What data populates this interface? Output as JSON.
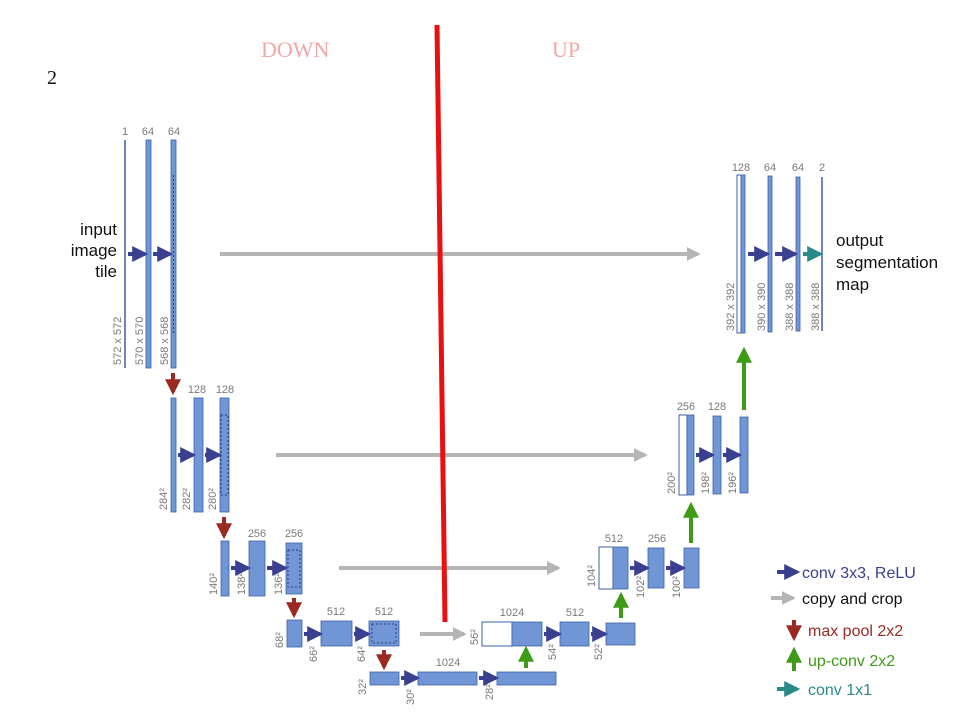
{
  "figure_number": "2",
  "section_labels": {
    "down": "DOWN",
    "up": "UP"
  },
  "labels": {
    "input": [
      "input",
      "image",
      "tile"
    ],
    "output": [
      "output",
      "segmentation",
      "map"
    ]
  },
  "channels": {
    "l1": [
      "1",
      "64",
      "64"
    ],
    "l2": [
      "128",
      "128"
    ],
    "l3": [
      "256",
      "256"
    ],
    "l4": [
      "512",
      "512"
    ],
    "l5": [
      "1024"
    ],
    "r4": [
      "1024",
      "512"
    ],
    "r3": [
      "512",
      "256"
    ],
    "r2": [
      "256",
      "128"
    ],
    "r1": [
      "128",
      "64",
      "64",
      "2"
    ]
  },
  "dims": {
    "l1": [
      "572 x 572",
      "570 x 570",
      "568 x 568"
    ],
    "l2": [
      "284²",
      "282²",
      "280²"
    ],
    "l3": [
      "140²",
      "138²",
      "136²"
    ],
    "l4": [
      "68²",
      "66²",
      "64²"
    ],
    "l5": [
      "32²",
      "30²",
      "28²"
    ],
    "r4": [
      "56²",
      "54²",
      "52²"
    ],
    "r3": [
      "104²",
      "102²",
      "100²"
    ],
    "r2": [
      "200²",
      "198²",
      "196²"
    ],
    "r1": [
      "392 x 392",
      "390 x 390",
      "388 x 388",
      "388 x 388"
    ]
  },
  "legend": [
    {
      "label": "conv 3x3, ReLU",
      "color": "#3a3f8f",
      "icon": "arrow-right-icon"
    },
    {
      "label": "copy and crop",
      "color": "#b5b5b5",
      "icon": "arrow-right-icon"
    },
    {
      "label": "max pool 2x2",
      "color": "#9b2a22",
      "icon": "arrow-down-icon"
    },
    {
      "label": "up-conv 2x2",
      "color": "#3f9a18",
      "icon": "arrow-up-icon"
    },
    {
      "label": "conv 1x1",
      "color": "#2a8a8a",
      "icon": "arrow-right-icon"
    }
  ],
  "colors": {
    "block": "#7196d6",
    "block_edge": "#3d5fa8",
    "divider": "#e81010"
  }
}
